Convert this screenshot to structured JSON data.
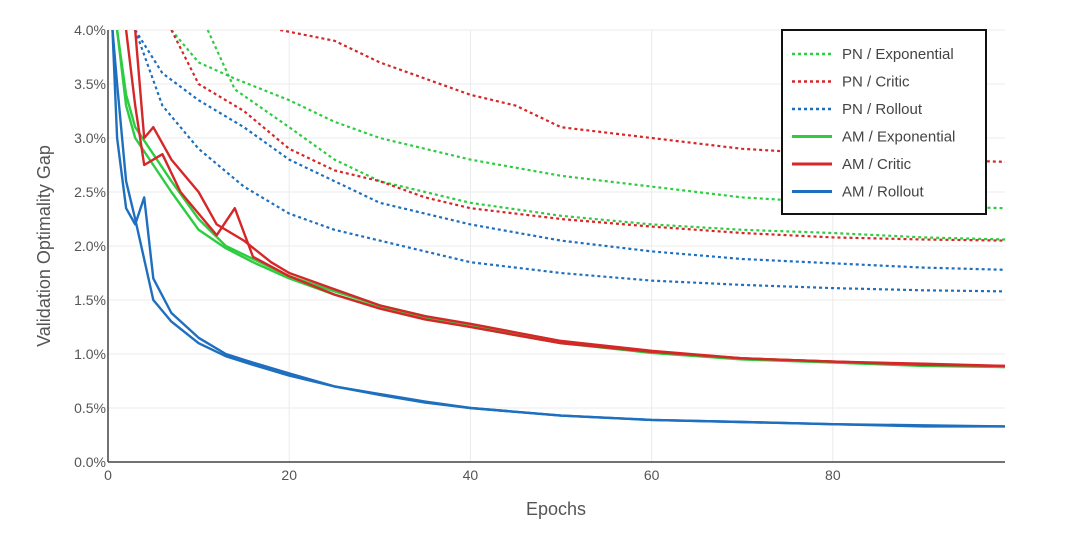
{
  "chart_data": {
    "type": "line",
    "title": "",
    "xlabel": "Epochs",
    "ylabel": "Validation Optimality Gap",
    "xlim": [
      0,
      99
    ],
    "ylim": [
      0,
      4
    ],
    "x_ticks": [
      0,
      20,
      40,
      60,
      80
    ],
    "x_tick_labels": [
      "0",
      "20",
      "40",
      "60",
      "80"
    ],
    "y_ticks": [
      0,
      0.5,
      1,
      1.5,
      2,
      2.5,
      3,
      3.5,
      4
    ],
    "y_tick_labels": [
      "0.0%",
      "0.5%",
      "1.0%",
      "1.5%",
      "2.0%",
      "2.5%",
      "3.0%",
      "3.5%",
      "4.0%"
    ],
    "grid": true,
    "legend_position": "top-right",
    "series": [
      {
        "name": "PN / Exponential",
        "color": "#2ecc40",
        "style": "dotted",
        "curves": [
          {
            "x": [
              7,
              10,
              14,
              20,
              25,
              30,
              35,
              40,
              50,
              60,
              70,
              80,
              90,
              99
            ],
            "y": [
              4.0,
              3.7,
              3.55,
              3.35,
              3.15,
              3.0,
              2.9,
              2.8,
              2.65,
              2.55,
              2.45,
              2.4,
              2.37,
              2.35
            ]
          },
          {
            "x": [
              11,
              14,
              20,
              25,
              30,
              35,
              40,
              50,
              60,
              70,
              80,
              90,
              99
            ],
            "y": [
              4.0,
              3.45,
              3.1,
              2.8,
              2.6,
              2.5,
              2.4,
              2.28,
              2.2,
              2.15,
              2.12,
              2.08,
              2.06
            ]
          }
        ]
      },
      {
        "name": "PN / Critic",
        "color": "#d62728",
        "style": "dotted",
        "curves": [
          {
            "x": [
              19,
              25,
              30,
              35,
              40,
              45,
              50,
              60,
              70,
              80,
              90,
              99
            ],
            "y": [
              4.0,
              3.9,
              3.7,
              3.55,
              3.4,
              3.3,
              3.1,
              3.0,
              2.9,
              2.85,
              2.8,
              2.78
            ]
          },
          {
            "x": [
              7,
              10,
              15,
              20,
              25,
              30,
              35,
              40,
              50,
              60,
              70,
              80,
              90,
              99
            ],
            "y": [
              4.0,
              3.5,
              3.25,
              2.9,
              2.7,
              2.6,
              2.45,
              2.35,
              2.25,
              2.18,
              2.12,
              2.08,
              2.06,
              2.05
            ]
          }
        ]
      },
      {
        "name": "PN / Rollout",
        "color": "#1f6fbf",
        "style": "dotted",
        "curves": [
          {
            "x": [
              3,
              6,
              10,
              15,
              20,
              25,
              30,
              35,
              40,
              50,
              60,
              70,
              80,
              90,
              99
            ],
            "y": [
              4.0,
              3.6,
              3.35,
              3.1,
              2.8,
              2.6,
              2.4,
              2.3,
              2.2,
              2.05,
              1.95,
              1.88,
              1.84,
              1.8,
              1.78
            ]
          },
          {
            "x": [
              3,
              6,
              10,
              15,
              20,
              25,
              30,
              35,
              40,
              50,
              60,
              70,
              80,
              90,
              99
            ],
            "y": [
              4.0,
              3.3,
              2.9,
              2.55,
              2.3,
              2.15,
              2.05,
              1.95,
              1.85,
              1.75,
              1.68,
              1.64,
              1.61,
              1.59,
              1.58
            ]
          }
        ]
      },
      {
        "name": "AM / Exponential",
        "color": "#2ecc40",
        "style": "solid",
        "curves": [
          {
            "x": [
              1,
              2,
              3,
              5,
              7,
              10,
              13,
              16,
              20,
              25,
              30,
              35,
              40,
              50,
              60,
              70,
              80,
              90,
              99
            ],
            "y": [
              4.0,
              3.4,
              3.1,
              2.85,
              2.6,
              2.25,
              2.0,
              1.88,
              1.72,
              1.58,
              1.45,
              1.35,
              1.27,
              1.12,
              1.02,
              0.96,
              0.93,
              0.9,
              0.88
            ]
          },
          {
            "x": [
              1,
              2,
              3,
              5,
              7,
              10,
              13,
              16,
              20,
              25,
              30,
              35,
              40,
              50,
              60,
              70,
              80,
              90,
              99
            ],
            "y": [
              4.0,
              3.3,
              3.0,
              2.75,
              2.5,
              2.15,
              1.98,
              1.85,
              1.7,
              1.55,
              1.43,
              1.33,
              1.25,
              1.1,
              1.01,
              0.95,
              0.92,
              0.89,
              0.88
            ]
          }
        ]
      },
      {
        "name": "AM / Critic",
        "color": "#d62728",
        "style": "solid",
        "curves": [
          {
            "x": [
              3,
              4,
              5,
              7,
              10,
              12,
              15,
              18,
              20,
              25,
              30,
              35,
              40,
              50,
              60,
              70,
              80,
              90,
              99
            ],
            "y": [
              4.0,
              3.0,
              3.1,
              2.8,
              2.5,
              2.2,
              2.05,
              1.85,
              1.75,
              1.6,
              1.45,
              1.35,
              1.28,
              1.12,
              1.03,
              0.96,
              0.93,
              0.9,
              0.89
            ]
          },
          {
            "x": [
              2,
              3,
              4,
              6,
              8,
              10,
              12,
              14,
              16,
              20,
              25,
              30,
              35,
              40,
              50,
              60,
              70,
              80,
              90,
              99
            ],
            "y": [
              4.0,
              3.3,
              2.75,
              2.85,
              2.5,
              2.3,
              2.1,
              2.35,
              1.9,
              1.72,
              1.55,
              1.42,
              1.32,
              1.25,
              1.1,
              1.02,
              0.96,
              0.93,
              0.91,
              0.89
            ]
          }
        ]
      },
      {
        "name": "AM / Rollout",
        "color": "#1f6fbf",
        "style": "solid",
        "curves": [
          {
            "x": [
              0.5,
              1,
              2,
              3,
              4,
              5,
              7,
              10,
              13,
              16,
              20,
              25,
              30,
              35,
              40,
              50,
              60,
              70,
              80,
              90,
              99
            ],
            "y": [
              4.0,
              3.0,
              2.35,
              2.2,
              2.45,
              1.7,
              1.38,
              1.15,
              1.0,
              0.92,
              0.82,
              0.7,
              0.62,
              0.55,
              0.5,
              0.43,
              0.39,
              0.37,
              0.35,
              0.33,
              0.33
            ]
          },
          {
            "x": [
              0.5,
              1,
              2,
              3,
              5,
              7,
              10,
              13,
              16,
              20,
              25,
              30,
              35,
              40,
              50,
              60,
              70,
              80,
              90,
              99
            ],
            "y": [
              4.0,
              3.5,
              2.6,
              2.25,
              1.5,
              1.3,
              1.1,
              0.98,
              0.9,
              0.8,
              0.7,
              0.63,
              0.56,
              0.5,
              0.43,
              0.39,
              0.37,
              0.35,
              0.34,
              0.33
            ]
          }
        ]
      }
    ]
  }
}
